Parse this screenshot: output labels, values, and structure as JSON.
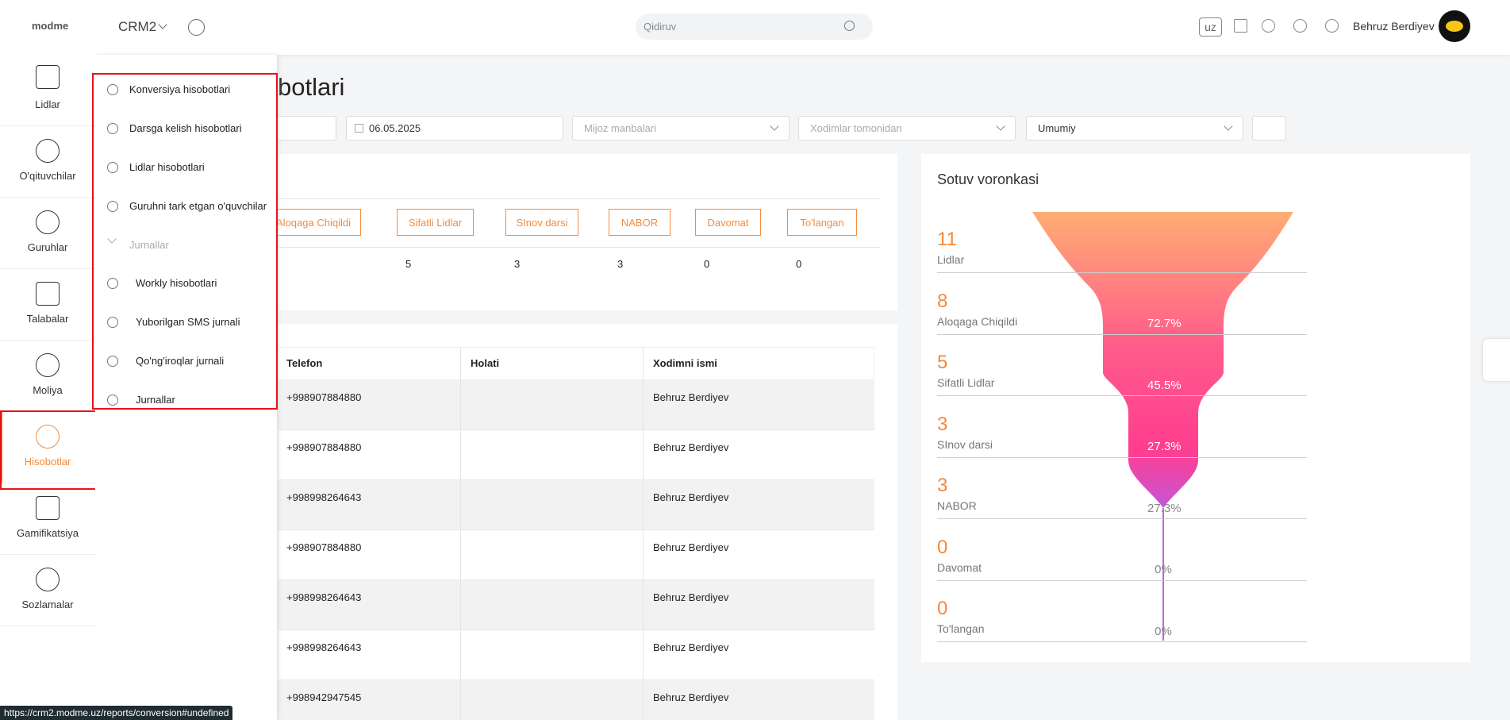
{
  "header": {
    "logo": "modme",
    "product": "CRM2",
    "search_placeholder": "Qidiruv",
    "language": "uz",
    "user_name": "Behruz Berdiyev"
  },
  "sidebar": {
    "items": [
      "Lidlar",
      "O'qituvchilar",
      "Guruhlar",
      "Talabalar",
      "Moliya",
      "Hisobotlar",
      "Gamifikatsiya",
      "Sozlamalar"
    ]
  },
  "reports_menu": {
    "items": [
      "Konversiya hisobotlari",
      "Darsga kelish hisobotlari",
      "Lidlar hisobotlari",
      "Guruhni tark etgan o'quvchilar"
    ],
    "group": {
      "title": "Jurnallar",
      "items": [
        "Workly hisobotlari",
        "Yuborilgan SMS jurnali",
        "Qo'ng'iroqlar jurnali",
        "Jurnallar"
      ]
    }
  },
  "page": {
    "title": "botlari",
    "filters": [
      "06.05.2025",
      "Mijoz manbalari",
      "Xodimlar tomonidan",
      "Umumiy"
    ]
  },
  "stages_card": {
    "stages": [
      {
        "label": "Aloqaga Chiqildi"
      },
      {
        "label": "Sifatli Lidlar",
        "count": "5"
      },
      {
        "label": "SInov darsi",
        "count": "3"
      },
      {
        "label": "NABOR",
        "count": "3"
      },
      {
        "label": "Davomat",
        "count": "0"
      },
      {
        "label": "To'langan",
        "count": "0"
      }
    ]
  },
  "table": {
    "columns": [
      "Telefon",
      "Holati",
      "Xodimni ismi"
    ],
    "rows": [
      {
        "phone": "+998907884880",
        "staff": "Behruz Berdiyev"
      },
      {
        "phone": "+998907884880",
        "staff": "Behruz Berdiyev"
      },
      {
        "phone": "+998998264643",
        "staff": "Behruz Berdiyev"
      },
      {
        "phone": "+998907884880",
        "staff": "Behruz Berdiyev"
      },
      {
        "phone": "+998998264643",
        "staff": "Behruz Berdiyev"
      },
      {
        "phone": "+998998264643",
        "staff": "Behruz Berdiyev"
      },
      {
        "phone": "+998942947545",
        "staff": "Behruz Berdiyev"
      }
    ]
  },
  "funnel": {
    "title": "Sotuv voronkasi",
    "stages": [
      {
        "value": "11",
        "label": "Lidlar"
      },
      {
        "value": "8",
        "label": "Aloqaga Chiqildi"
      },
      {
        "value": "5",
        "label": "Sifatli Lidlar"
      },
      {
        "value": "3",
        "label": "SInov darsi"
      },
      {
        "value": "3",
        "label": "NABOR"
      },
      {
        "value": "0",
        "label": "Davomat"
      },
      {
        "value": "0",
        "label": "To'langan"
      }
    ],
    "conversions": [
      "72.7%",
      "45.5%",
      "27.3%",
      "27.3%",
      "0%",
      "0%"
    ]
  },
  "status_url": "https://crm2.modme.uz/reports/conversion#undefined"
}
